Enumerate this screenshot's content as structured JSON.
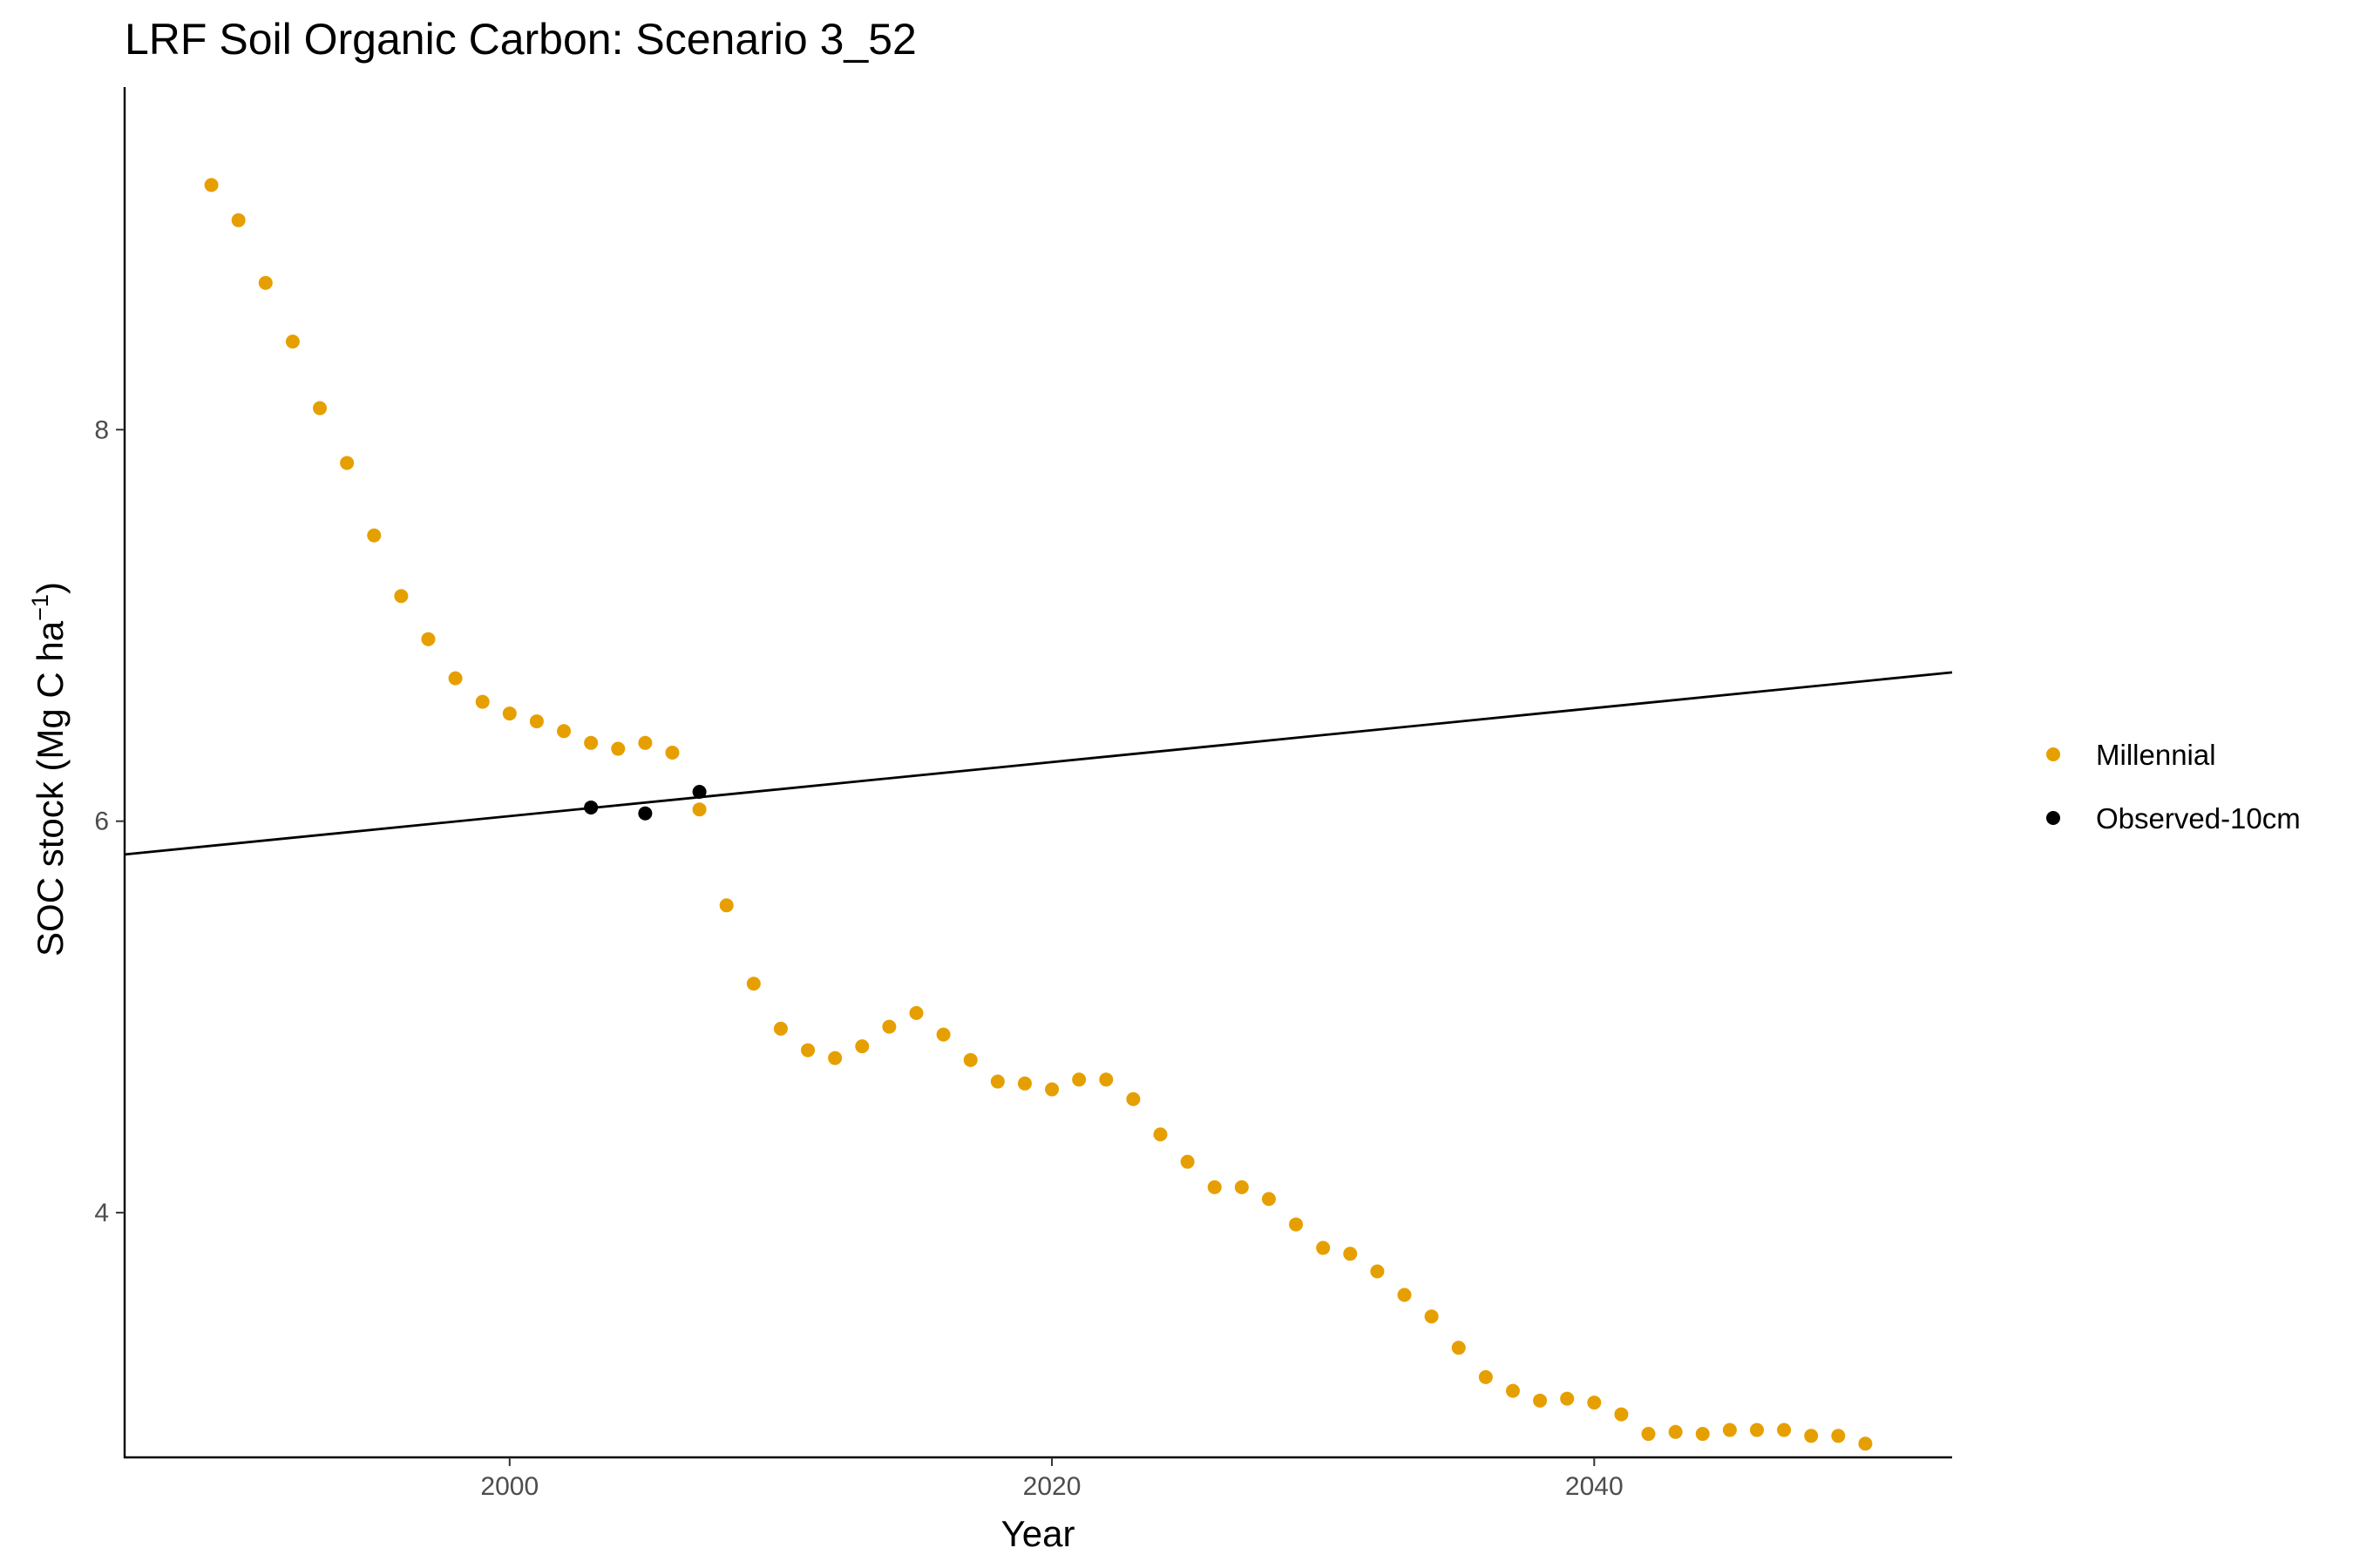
{
  "chart_data": {
    "type": "scatter",
    "title": "LRF Soil Organic Carbon: Scenario  3_52",
    "xlabel": "Year",
    "ylabel": {
      "main": "SOC stock (Mg C ha",
      "superscript": "−1",
      "close": ")"
    },
    "xlim": [
      1985.8,
      2053.2
    ],
    "ylim": [
      2.75,
      9.75
    ],
    "x_ticks": [
      2000,
      2020,
      2040
    ],
    "x_tick_labels": [
      "2000",
      "2020",
      "2040"
    ],
    "y_ticks": [
      4,
      6,
      8
    ],
    "y_tick_labels": [
      "4",
      "6",
      "8"
    ],
    "grid": false,
    "legend_position": "right",
    "series": [
      {
        "name": "Millennial",
        "color": "#E69F00",
        "marker": "circle",
        "x": [
          1989,
          1990,
          1991,
          1992,
          1993,
          1994,
          1995,
          1996,
          1997,
          1998,
          1999,
          2000,
          2001,
          2002,
          2003,
          2004,
          2005,
          2006,
          2007,
          2008,
          2009,
          2010,
          2011,
          2012,
          2013,
          2014,
          2015,
          2016,
          2017,
          2018,
          2019,
          2020,
          2021,
          2022,
          2023,
          2024,
          2025,
          2026,
          2027,
          2028,
          2029,
          2030,
          2031,
          2032,
          2033,
          2034,
          2035,
          2036,
          2037,
          2038,
          2039,
          2040,
          2041,
          2042,
          2043,
          2044,
          2045,
          2046,
          2047,
          2048,
          2049,
          2050
        ],
        "y": [
          9.25,
          9.07,
          8.75,
          8.45,
          8.11,
          7.83,
          7.46,
          7.15,
          6.93,
          6.73,
          6.61,
          6.55,
          6.51,
          6.46,
          6.4,
          6.37,
          6.4,
          6.35,
          6.06,
          5.57,
          5.17,
          4.94,
          4.83,
          4.79,
          4.85,
          4.95,
          5.02,
          4.91,
          4.78,
          4.67,
          4.66,
          4.63,
          4.68,
          4.68,
          4.58,
          4.4,
          4.26,
          4.13,
          4.13,
          4.07,
          3.94,
          3.82,
          3.79,
          3.7,
          3.58,
          3.47,
          3.31,
          3.16,
          3.09,
          3.04,
          3.05,
          3.03,
          2.97,
          2.87,
          2.88,
          2.87,
          2.89,
          2.89,
          2.89,
          2.86,
          2.86,
          2.82
        ]
      },
      {
        "name": "Observed-10cm",
        "color": "#000000",
        "marker": "circle",
        "x": [
          2003,
          2005,
          2007
        ],
        "y": [
          6.07,
          6.04,
          6.15
        ]
      }
    ],
    "trend_line": {
      "color": "#000000",
      "x": [
        1985.8,
        2053.2
      ],
      "y": [
        5.83,
        6.76
      ]
    }
  }
}
